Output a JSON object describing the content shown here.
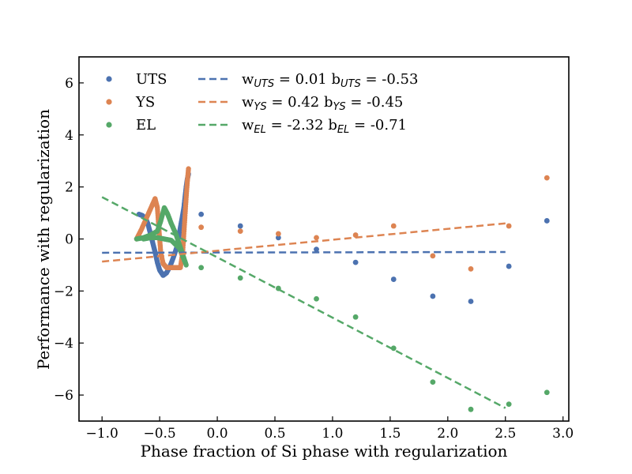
{
  "chart_data": {
    "type": "scatter",
    "xlabel": "Phase fraction of Si phase with regularization",
    "ylabel": "Performance with regularization",
    "xlim": [
      -1.2,
      3.05
    ],
    "ylim": [
      -7.0,
      7.0
    ],
    "xticks": [
      -1.0,
      -0.5,
      0.0,
      0.5,
      1.0,
      1.5,
      2.0,
      2.5,
      3.0
    ],
    "xtick_labels": [
      "−1.0",
      "−0.5",
      "0.0",
      "0.5",
      "1.0",
      "1.5",
      "2.0",
      "2.5",
      "3.0"
    ],
    "yticks": [
      -6,
      -4,
      -2,
      0,
      2,
      4,
      6
    ],
    "ytick_labels": [
      "−6",
      "−4",
      "−2",
      "0",
      "2",
      "4",
      "6"
    ],
    "legend_position": "top-left",
    "grid": false,
    "series": [
      {
        "name": "UTS",
        "color": "#4c72b0",
        "cluster": [
          [
            -0.68,
            0.95
          ],
          [
            -0.65,
            0.9
          ],
          [
            -0.62,
            0.78
          ],
          [
            -0.6,
            0.55
          ],
          [
            -0.58,
            0.2
          ],
          [
            -0.56,
            -0.15
          ],
          [
            -0.54,
            -0.5
          ],
          [
            -0.52,
            -0.9
          ],
          [
            -0.5,
            -1.2
          ],
          [
            -0.47,
            -1.4
          ],
          [
            -0.44,
            -1.3
          ],
          [
            -0.41,
            -1.05
          ],
          [
            -0.38,
            -0.7
          ],
          [
            -0.35,
            -0.3
          ],
          [
            -0.33,
            0.2
          ],
          [
            -0.31,
            0.7
          ],
          [
            -0.29,
            1.2
          ],
          [
            -0.28,
            1.6
          ],
          [
            -0.27,
            2.0
          ],
          [
            -0.26,
            2.3
          ],
          [
            -0.25,
            2.5
          ]
        ],
        "points": [
          [
            -0.14,
            0.95
          ],
          [
            0.2,
            0.5
          ],
          [
            0.53,
            0.05
          ],
          [
            0.86,
            -0.4
          ],
          [
            1.2,
            -0.9
          ],
          [
            1.53,
            -1.55
          ],
          [
            1.87,
            -2.2
          ],
          [
            2.2,
            -2.4
          ],
          [
            2.53,
            -1.05
          ],
          [
            2.86,
            0.7
          ]
        ],
        "fit": {
          "x": [
            -1.0,
            2.5
          ],
          "y": [
            -0.53,
            -0.5
          ]
        }
      },
      {
        "name": "YS",
        "color": "#dd8452",
        "cluster": [
          [
            -0.7,
            0.0
          ],
          [
            -0.66,
            0.35
          ],
          [
            -0.62,
            0.75
          ],
          [
            -0.58,
            1.15
          ],
          [
            -0.54,
            1.55
          ],
          [
            -0.52,
            1.2
          ],
          [
            -0.51,
            0.6
          ],
          [
            -0.5,
            0.0
          ],
          [
            -0.49,
            -0.55
          ],
          [
            -0.47,
            -0.95
          ],
          [
            -0.44,
            -1.1
          ],
          [
            -0.4,
            -1.1
          ],
          [
            -0.36,
            -1.1
          ],
          [
            -0.32,
            -1.1
          ],
          [
            -0.3,
            -0.5
          ],
          [
            -0.29,
            0.2
          ],
          [
            -0.28,
            0.9
          ],
          [
            -0.27,
            1.6
          ],
          [
            -0.26,
            2.2
          ],
          [
            -0.25,
            2.7
          ]
        ],
        "points": [
          [
            -0.14,
            0.45
          ],
          [
            0.2,
            0.3
          ],
          [
            0.53,
            0.2
          ],
          [
            0.86,
            0.05
          ],
          [
            1.2,
            0.15
          ],
          [
            1.53,
            0.5
          ],
          [
            1.87,
            -0.65
          ],
          [
            2.2,
            -1.15
          ],
          [
            2.53,
            0.5
          ],
          [
            2.86,
            2.35
          ]
        ],
        "fit": {
          "x": [
            -1.0,
            2.5
          ],
          "y": [
            -0.87,
            0.6
          ]
        }
      },
      {
        "name": "EL",
        "color": "#55a868",
        "cluster": [
          [
            -0.7,
            0.0
          ],
          [
            -0.64,
            0.05
          ],
          [
            -0.58,
            0.15
          ],
          [
            -0.52,
            0.3
          ],
          [
            -0.49,
            0.7
          ],
          [
            -0.46,
            1.2
          ],
          [
            -0.43,
            0.95
          ],
          [
            -0.4,
            0.6
          ],
          [
            -0.36,
            0.2
          ],
          [
            -0.33,
            -0.2
          ],
          [
            -0.3,
            -0.6
          ],
          [
            -0.27,
            -1.0
          ],
          [
            -0.33,
            -0.35
          ],
          [
            -0.4,
            -0.05
          ],
          [
            -0.46,
            0.0
          ],
          [
            -0.52,
            0.05
          ],
          [
            -0.58,
            0.05
          ],
          [
            -0.64,
            0.0
          ]
        ],
        "points": [
          [
            -0.14,
            -1.1
          ],
          [
            0.2,
            -1.5
          ],
          [
            0.53,
            -1.9
          ],
          [
            0.86,
            -2.3
          ],
          [
            1.2,
            -3.0
          ],
          [
            1.53,
            -4.2
          ],
          [
            1.87,
            -5.5
          ],
          [
            2.2,
            -6.55
          ],
          [
            2.53,
            -6.35
          ],
          [
            2.86,
            -5.9
          ]
        ],
        "fit": {
          "x": [
            -1.0,
            2.5
          ],
          "y": [
            1.61,
            -6.5
          ]
        }
      }
    ],
    "fit_legend": [
      {
        "w_pre": "w",
        "w_sub": "UTS",
        "w_val": " = 0.01",
        "b_pre": "b",
        "b_sub": "UTS",
        "b_val": " = -0.53",
        "color": "#4c72b0"
      },
      {
        "w_pre": "w",
        "w_sub": "YS",
        "w_val": " = 0.42",
        "b_pre": "b",
        "b_sub": "YS",
        "b_val": " = -0.45",
        "color": "#dd8452"
      },
      {
        "w_pre": "w",
        "w_sub": "EL",
        "w_val": " = -2.32",
        "b_pre": "b",
        "b_sub": "EL",
        "b_val": " = -0.71",
        "color": "#55a868"
      }
    ]
  }
}
